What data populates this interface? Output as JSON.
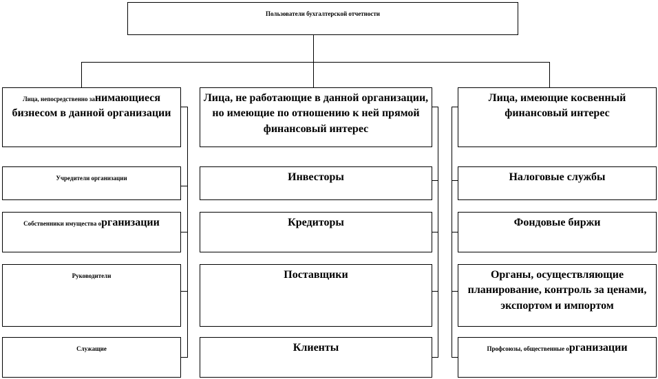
{
  "root": {
    "parts": [
      {
        "size": "s",
        "text": "Пользователи бухгалтерской отчетности"
      }
    ]
  },
  "columns": [
    {
      "header": {
        "parts": [
          {
            "size": "s",
            "text": "Лица, непосредственно за"
          },
          {
            "size": "l",
            "text": "нимающиеся бизнесом в данной организации"
          }
        ]
      },
      "items": [
        {
          "parts": [
            {
              "size": "s",
              "text": "Учредители организации"
            }
          ]
        },
        {
          "parts": [
            {
              "size": "s",
              "text": "Собственники имущества о"
            },
            {
              "size": "l",
              "text": "рганизации"
            }
          ]
        },
        {
          "parts": [
            {
              "size": "s",
              "text": "Руководители"
            }
          ]
        },
        {
          "parts": [
            {
              "size": "s",
              "text": "Служащие"
            }
          ]
        }
      ]
    },
    {
      "header": {
        "parts": [
          {
            "size": "l",
            "text": "Лица, не работающие в данной организации, но имеющие по отношению к ней прямой финансовый интерес"
          }
        ]
      },
      "items": [
        {
          "parts": [
            {
              "size": "l",
              "text": "Инвесторы"
            }
          ]
        },
        {
          "parts": [
            {
              "size": "l",
              "text": "Кредиторы"
            }
          ]
        },
        {
          "parts": [
            {
              "size": "l",
              "text": "Поставщики"
            }
          ]
        },
        {
          "parts": [
            {
              "size": "l",
              "text": "Клиенты"
            }
          ]
        }
      ]
    },
    {
      "header": {
        "parts": [
          {
            "size": "l",
            "text": "Лица, имеющие косвенный финансовый интерес"
          }
        ]
      },
      "items": [
        {
          "parts": [
            {
              "size": "l",
              "text": "Налоговые службы"
            }
          ]
        },
        {
          "parts": [
            {
              "size": "l",
              "text": "Фондовые биржи"
            }
          ]
        },
        {
          "parts": [
            {
              "size": "l",
              "text": "Органы, осуществляющие планирование, контроль за ценами, экспортом и импортом"
            }
          ]
        },
        {
          "parts": [
            {
              "size": "s",
              "text": "Профсоюзы, общественные о"
            },
            {
              "size": "l",
              "text": "рганизации"
            }
          ]
        }
      ]
    }
  ]
}
